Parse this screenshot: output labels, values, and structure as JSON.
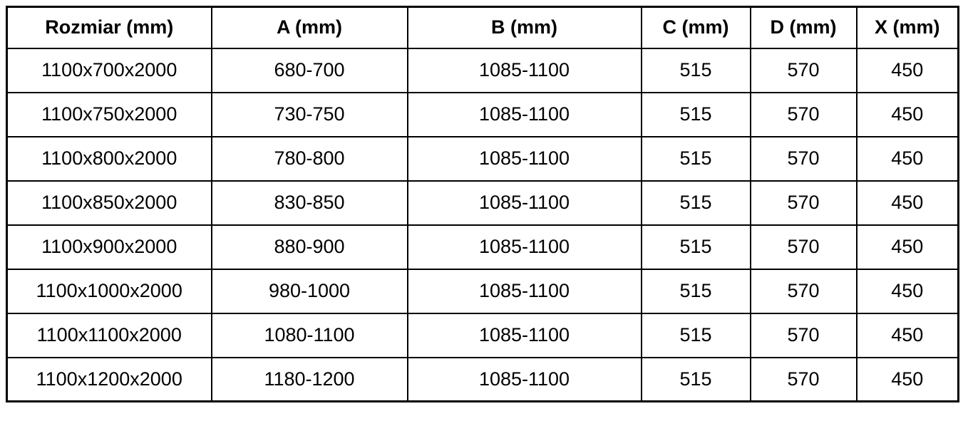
{
  "chart_data": {
    "type": "table",
    "title": "",
    "columns": [
      "Rozmiar (mm)",
      "A (mm)",
      "B (mm)",
      "C (mm)",
      "D (mm)",
      "X (mm)"
    ],
    "rows": [
      [
        "1100x700x2000",
        "680-700",
        "1085-1100",
        "515",
        "570",
        "450"
      ],
      [
        "1100x750x2000",
        "730-750",
        "1085-1100",
        "515",
        "570",
        "450"
      ],
      [
        "1100x800x2000",
        "780-800",
        "1085-1100",
        "515",
        "570",
        "450"
      ],
      [
        "1100x850x2000",
        "830-850",
        "1085-1100",
        "515",
        "570",
        "450"
      ],
      [
        "1100x900x2000",
        "880-900",
        "1085-1100",
        "515",
        "570",
        "450"
      ],
      [
        "1100x1000x2000",
        "980-1000",
        "1085-1100",
        "515",
        "570",
        "450"
      ],
      [
        "1100x1100x2000",
        "1080-1100",
        "1085-1100",
        "515",
        "570",
        "450"
      ],
      [
        "1100x1200x2000",
        "1180-1200",
        "1085-1100",
        "515",
        "570",
        "450"
      ]
    ],
    "layout": {
      "header_bold": true,
      "grid": true,
      "text_align": "center"
    },
    "colors": {
      "border": "#000000",
      "text": "#000000",
      "background": "#ffffff"
    }
  }
}
